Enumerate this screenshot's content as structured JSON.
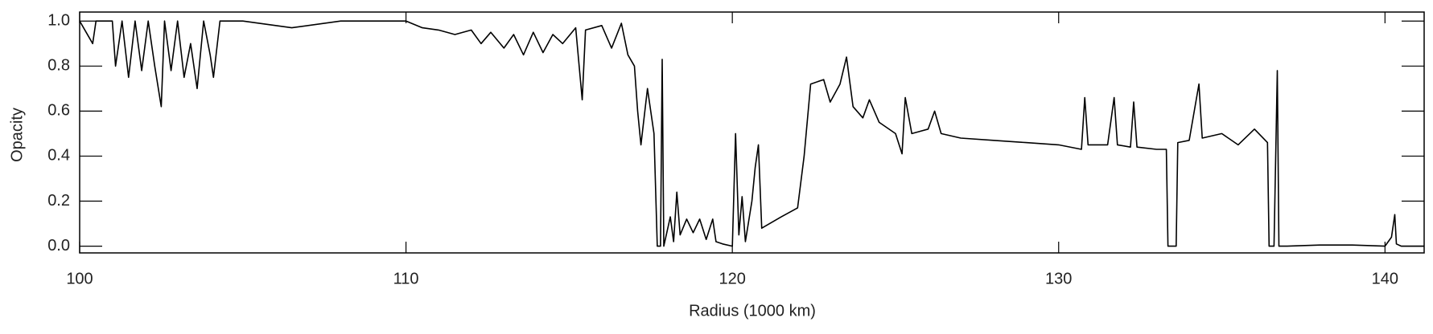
{
  "chart_data": {
    "type": "line",
    "x_label": "Radius (1000 km)",
    "y_label": "Opacity",
    "xlim": [
      100,
      141.2
    ],
    "ylim": [
      -0.03,
      1.04
    ],
    "xticks": [
      100,
      110,
      120,
      130,
      140
    ],
    "yticks": [
      {
        "value": 0,
        "label": "0.0"
      },
      {
        "value": 0.2,
        "label": "0.2"
      },
      {
        "value": 0.4,
        "label": "0.4"
      },
      {
        "value": 0.6,
        "label": "0.6"
      },
      {
        "value": 0.8,
        "label": "0.8"
      },
      {
        "value": 1,
        "label": "1.0"
      }
    ],
    "series": [
      {
        "color": "#000000",
        "x": [
          100.0,
          100.4,
          100.5,
          101.0,
          101.1,
          101.3,
          101.5,
          101.7,
          101.9,
          102.1,
          102.3,
          102.5,
          102.6,
          102.8,
          103.0,
          103.2,
          103.4,
          103.6,
          103.8,
          104.0,
          104.1,
          104.3,
          105,
          106.5,
          108,
          110,
          110.5,
          111,
          111.5,
          112,
          112.3,
          112.6,
          113,
          113.3,
          113.6,
          113.9,
          114.2,
          114.5,
          114.8,
          115.2,
          115.4,
          115.5,
          116,
          116.3,
          116.6,
          116.8,
          117.0,
          117.1,
          117.2,
          117.4,
          117.6,
          117.7,
          117.8,
          117.85,
          117.9,
          118.1,
          118.2,
          118.3,
          118.4,
          118.6,
          118.8,
          119.0,
          119.2,
          119.4,
          119.5,
          119.7,
          120.0,
          120.1,
          120.2,
          120.3,
          120.4,
          120.6,
          120.7,
          120.8,
          120.9,
          121.5,
          122.0,
          122.2,
          122.4,
          122.8,
          123.0,
          123.3,
          123.5,
          123.7,
          124.0,
          124.2,
          124.5,
          125.0,
          125.2,
          125.3,
          125.5,
          126,
          126.2,
          126.4,
          127,
          128,
          129,
          130,
          130.7,
          130.8,
          130.9,
          131.5,
          131.7,
          131.8,
          132.2,
          132.3,
          132.4,
          133,
          133.3,
          133.35,
          133.5,
          133.6,
          133.65,
          134,
          134.3,
          134.4,
          135,
          135.5,
          136,
          136.4,
          136.45,
          136.6,
          136.7,
          136.75,
          137,
          138,
          139,
          140.0,
          140.2,
          140.3,
          140.35,
          140.5,
          141.2
        ],
        "values": [
          1.0,
          0.9,
          1.0,
          1.0,
          0.8,
          1.0,
          0.75,
          1.0,
          0.78,
          1.0,
          0.8,
          0.62,
          1.0,
          0.78,
          1.0,
          0.75,
          0.9,
          0.7,
          1.0,
          0.85,
          0.75,
          1.0,
          1.0,
          0.97,
          1.0,
          1.0,
          0.97,
          0.96,
          0.94,
          0.96,
          0.9,
          0.95,
          0.88,
          0.94,
          0.85,
          0.95,
          0.86,
          0.94,
          0.9,
          0.97,
          0.65,
          0.96,
          0.98,
          0.88,
          0.99,
          0.85,
          0.8,
          0.6,
          0.45,
          0.7,
          0.5,
          0.0,
          0.0,
          0.83,
          0.0,
          0.13,
          0.02,
          0.24,
          0.05,
          0.12,
          0.06,
          0.12,
          0.03,
          0.12,
          0.02,
          0.01,
          0.0,
          0.5,
          0.05,
          0.22,
          0.02,
          0.2,
          0.35,
          0.45,
          0.08,
          0.13,
          0.17,
          0.4,
          0.72,
          0.74,
          0.64,
          0.72,
          0.84,
          0.62,
          0.57,
          0.65,
          0.55,
          0.5,
          0.41,
          0.66,
          0.5,
          0.52,
          0.6,
          0.5,
          0.48,
          0.47,
          0.46,
          0.45,
          0.43,
          0.66,
          0.45,
          0.45,
          0.66,
          0.45,
          0.44,
          0.64,
          0.44,
          0.43,
          0.43,
          0.0,
          0.0,
          0.0,
          0.46,
          0.47,
          0.72,
          0.48,
          0.5,
          0.45,
          0.52,
          0.46,
          0.0,
          0.0,
          0.78,
          0.0,
          0.0,
          0.005,
          0.005,
          0.0,
          0.04,
          0.14,
          0.01,
          0.0,
          0.0
        ]
      }
    ]
  }
}
